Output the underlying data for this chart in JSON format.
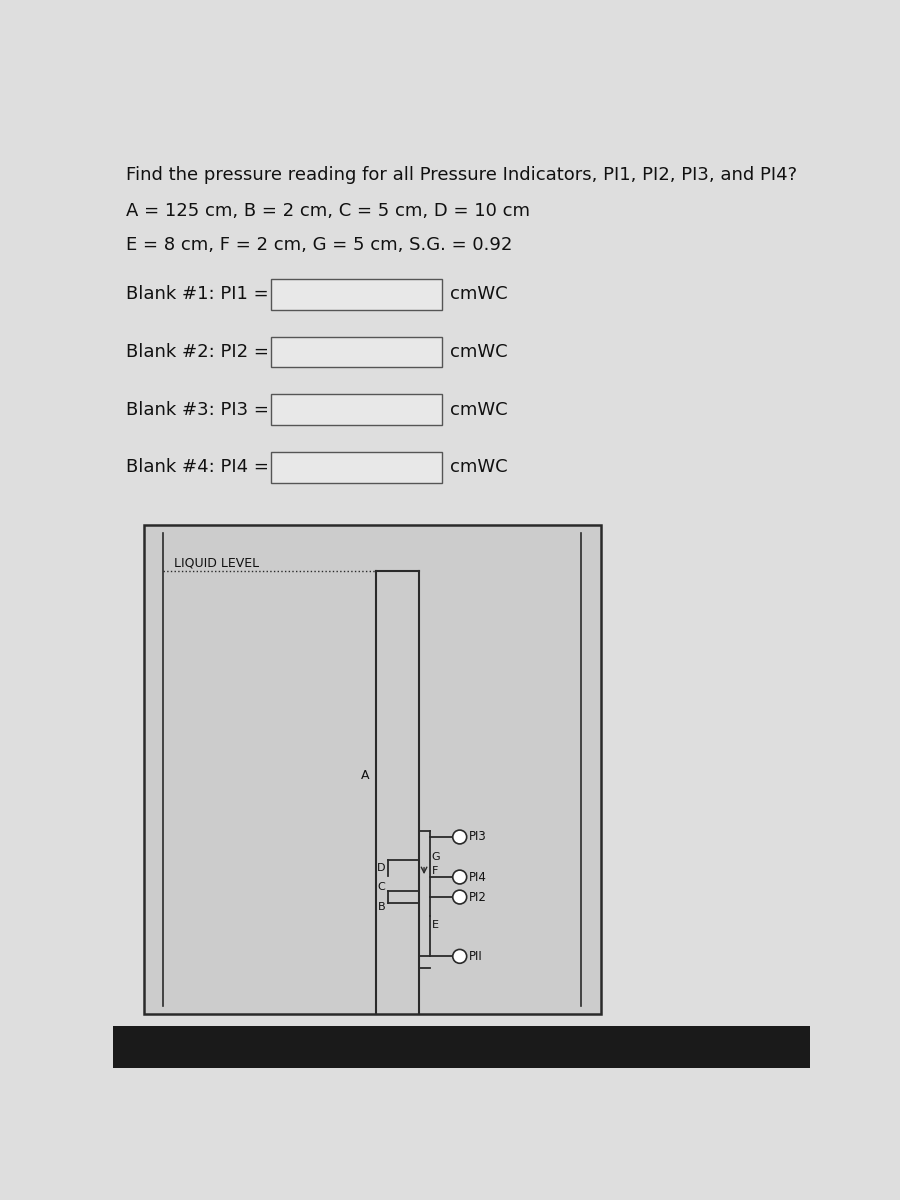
{
  "title": "Find the pressure reading for all Pressure Indicators, PI1, PI2, PI3, and PI4?",
  "line1": "A = 125 cm, B = 2 cm, C = 5 cm, D = 10 cm",
  "line2": "E = 8 cm, F = 2 cm, G = 5 cm, S.G. = 0.92",
  "blanks": [
    {
      "label": "Blank #1: PI1 =",
      "unit": "cmWC"
    },
    {
      "label": "Blank #2: PI2 =",
      "unit": "cmWC"
    },
    {
      "label": "Blank #3: PI3 =",
      "unit": "cmWC"
    },
    {
      "label": "Blank #4: PI4 =",
      "unit": "cmWC"
    }
  ],
  "bg_color": "#dedede",
  "box_bg": "#e8e8e8",
  "text_color": "#111111",
  "diagram_border": "#2a2a2a",
  "dark_bar": "#1a1a1a"
}
